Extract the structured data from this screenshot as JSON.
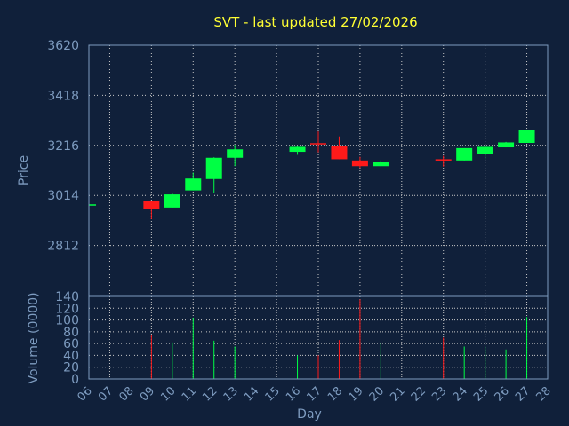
{
  "chart_data": {
    "type": "candlestick",
    "title": "SVT - last updated 27/02/2026",
    "xlabel": "Day",
    "price_panel": {
      "ylabel": "Price",
      "ylim": [
        2610,
        3620
      ],
      "yticks": [
        3620,
        3418,
        3216,
        3014,
        2812
      ],
      "grid": true
    },
    "volume_panel": {
      "ylabel": "Volume (0000)",
      "ylim": [
        0,
        140
      ],
      "yticks": [
        140,
        120,
        100,
        80,
        60,
        40,
        20,
        0
      ],
      "grid": true
    },
    "x_ticks": [
      "06",
      "07",
      "08",
      "09",
      "10",
      "11",
      "12",
      "13",
      "14",
      "15",
      "16",
      "17",
      "18",
      "19",
      "20",
      "21",
      "22",
      "23",
      "24",
      "25",
      "26",
      "27",
      "28"
    ],
    "candles": [
      {
        "day": "06",
        "open": 2978,
        "high": 2978,
        "low": 2978,
        "close": 2978,
        "volume": 0
      },
      {
        "day": "09",
        "open": 2990,
        "high": 2990,
        "low": 2918,
        "close": 2958,
        "volume": 75
      },
      {
        "day": "10",
        "open": 2965,
        "high": 3022,
        "low": 2965,
        "close": 3018,
        "volume": 62
      },
      {
        "day": "11",
        "open": 3034,
        "high": 3106,
        "low": 3034,
        "close": 3082,
        "volume": 104
      },
      {
        "day": "12",
        "open": 3080,
        "high": 3168,
        "low": 3025,
        "close": 3166,
        "volume": 65
      },
      {
        "day": "13",
        "open": 3166,
        "high": 3218,
        "low": 3132,
        "close": 3200,
        "volume": 55
      },
      {
        "day": "16",
        "open": 3190,
        "high": 3212,
        "low": 3178,
        "close": 3210,
        "volume": 40
      },
      {
        "day": "17",
        "open": 3225,
        "high": 3272,
        "low": 3188,
        "close": 3222,
        "volume": 40
      },
      {
        "day": "18",
        "open": 3214,
        "high": 3252,
        "low": 3160,
        "close": 3160,
        "volume": 66
      },
      {
        "day": "19",
        "open": 3155,
        "high": 3170,
        "low": 3125,
        "close": 3132,
        "volume": 135
      },
      {
        "day": "20",
        "open": 3132,
        "high": 3155,
        "low": 3132,
        "close": 3150,
        "volume": 62
      },
      {
        "day": "23",
        "open": 3160,
        "high": 3174,
        "low": 3130,
        "close": 3158,
        "volume": 70
      },
      {
        "day": "24",
        "open": 3155,
        "high": 3205,
        "low": 3155,
        "close": 3205,
        "volume": 55
      },
      {
        "day": "25",
        "open": 3180,
        "high": 3212,
        "low": 3160,
        "close": 3210,
        "volume": 55
      },
      {
        "day": "26",
        "open": 3208,
        "high": 3230,
        "low": 3208,
        "close": 3228,
        "volume": 50
      },
      {
        "day": "27",
        "open": 3226,
        "high": 3280,
        "low": 3226,
        "close": 3278,
        "volume": 105
      }
    ],
    "colors": {
      "background": "#10203a",
      "frame": "#7e9cc0",
      "grid": "#c8c8c8",
      "up": "#00ff44",
      "down": "#ff1a1a",
      "title": "#ffff33",
      "text": "#7e9cc0"
    }
  }
}
